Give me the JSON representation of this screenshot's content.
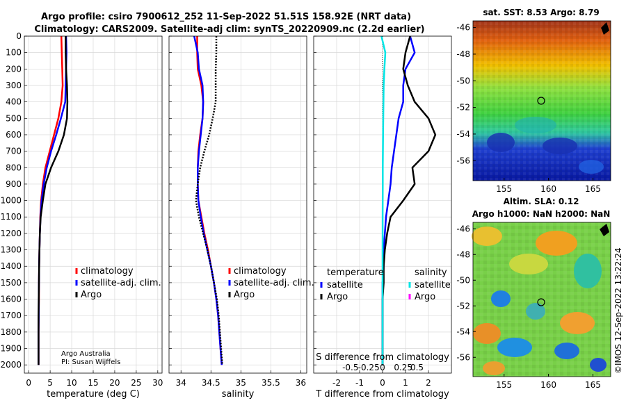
{
  "header": {
    "title_line1": "Argo profile: csiro 7900612_252 11-Sep-2022 51.51S 158.92E (NRT data)",
    "title_line2": "Climatology: CARS2009. Satellite-adj clim: synTS_20220909.nc (2.2d earlier)"
  },
  "credits": {
    "line1": "Argo Australia",
    "line2": "PI: Susan Wijffels"
  },
  "watermark": "©IMOS 12-Sep-2022 13:22:24",
  "colors": {
    "climatology": "#ff0000",
    "satellite": "#0000ff",
    "argo": "#000000",
    "cyan": "#00e5e5",
    "magenta": "#ff00ff"
  },
  "chart_data": [
    {
      "type": "line",
      "id": "temperature",
      "xlabel": "temperature (deg C)",
      "xlim": [
        -1,
        31
      ],
      "xticks": [
        0,
        5,
        10,
        15,
        20,
        25,
        30
      ],
      "ylim": [
        0,
        2050
      ],
      "yticks": [
        0,
        100,
        200,
        300,
        400,
        500,
        600,
        700,
        800,
        900,
        1000,
        1100,
        1200,
        1300,
        1400,
        1500,
        1600,
        1700,
        1800,
        1900,
        2000
      ],
      "grid": true,
      "legend": [
        "climatology",
        "satellite-adj. clim.",
        "Argo"
      ],
      "series": [
        {
          "name": "climatology",
          "color": "#ff0000",
          "x": [
            7.6,
            7.7,
            7.8,
            7.9,
            7.6,
            6.9,
            5.9,
            4.9,
            3.9,
            3.3,
            2.9,
            2.7,
            2.6,
            2.5,
            2.45,
            2.4,
            2.4,
            2.35,
            2.3,
            2.3,
            2.3
          ],
          "y": [
            0,
            100,
            200,
            300,
            400,
            500,
            600,
            700,
            800,
            900,
            1000,
            1100,
            1200,
            1300,
            1400,
            1500,
            1600,
            1700,
            1800,
            1900,
            2000
          ]
        },
        {
          "name": "satellite-adj. clim.",
          "color": "#0000ff",
          "x": [
            8.7,
            8.8,
            8.7,
            8.6,
            8.5,
            7.5,
            6.4,
            5.2,
            4.2,
            3.5,
            3.0,
            2.75,
            2.6,
            2.5,
            2.45,
            2.4,
            2.35,
            2.35,
            2.3,
            2.3,
            2.3
          ],
          "y": [
            0,
            100,
            200,
            300,
            400,
            500,
            600,
            700,
            800,
            900,
            1000,
            1100,
            1200,
            1300,
            1400,
            1500,
            1600,
            1700,
            1800,
            1900,
            2000
          ]
        },
        {
          "name": "Argo",
          "color": "#000000",
          "x": [
            8.6,
            8.6,
            8.7,
            8.9,
            9.0,
            8.9,
            8.2,
            6.9,
            5.2,
            3.9,
            3.3,
            2.8,
            2.6,
            2.5,
            2.45,
            2.4,
            2.35,
            2.3,
            2.3,
            2.3,
            2.3
          ],
          "y": [
            0,
            100,
            200,
            300,
            400,
            500,
            600,
            700,
            800,
            900,
            1000,
            1100,
            1200,
            1300,
            1400,
            1500,
            1600,
            1700,
            1800,
            1900,
            2000
          ]
        }
      ]
    },
    {
      "type": "line",
      "id": "salinity",
      "xlabel": "salinity",
      "xlim": [
        33.8,
        36.1
      ],
      "xticks": [
        34,
        34.5,
        35,
        35.5,
        36
      ],
      "ylim": [
        0,
        2050
      ],
      "grid": true,
      "legend": [
        "climatology",
        "satellite-adj. clim.",
        "Argo"
      ],
      "series": [
        {
          "name": "climatology",
          "color": "#ff0000",
          "x": [
            34.27,
            34.27,
            34.28,
            34.34,
            34.37,
            34.36,
            34.32,
            34.29,
            34.28,
            34.28,
            34.29,
            34.34,
            34.39,
            34.45,
            34.5,
            34.55,
            34.59,
            34.62,
            34.64,
            34.66,
            34.68
          ],
          "y": [
            0,
            100,
            200,
            300,
            400,
            500,
            600,
            700,
            800,
            900,
            1000,
            1100,
            1200,
            1300,
            1400,
            1500,
            1600,
            1700,
            1800,
            1900,
            2000
          ]
        },
        {
          "name": "satellite-adj. clim.",
          "color": "#0000ff",
          "x": [
            34.22,
            34.28,
            34.3,
            34.36,
            34.37,
            34.36,
            34.33,
            34.3,
            34.28,
            34.28,
            34.29,
            34.33,
            34.38,
            34.44,
            34.5,
            34.55,
            34.59,
            34.62,
            34.64,
            34.66,
            34.68
          ],
          "y": [
            0,
            100,
            200,
            300,
            400,
            500,
            600,
            700,
            800,
            900,
            1000,
            1100,
            1200,
            1300,
            1400,
            1500,
            1600,
            1700,
            1800,
            1900,
            2000
          ]
        },
        {
          "name": "Argo",
          "color": "#000000",
          "x": [
            34.59,
            34.59,
            34.58,
            34.58,
            34.58,
            34.53,
            34.47,
            34.39,
            34.32,
            34.28,
            34.25,
            34.3,
            34.37,
            34.44,
            34.5,
            34.55,
            34.6,
            34.63,
            34.65,
            34.67,
            34.69
          ],
          "y": [
            0,
            100,
            200,
            300,
            400,
            500,
            600,
            700,
            800,
            900,
            1000,
            1100,
            1200,
            1300,
            1400,
            1500,
            1600,
            1700,
            1800,
            1900,
            2000
          ]
        }
      ]
    },
    {
      "type": "line",
      "id": "difference",
      "xlabel": "T difference from climatology",
      "xlabel_top": "S difference from climatology",
      "xlim": [
        -3,
        3
      ],
      "xticks": [
        -2,
        -1,
        0,
        1,
        2
      ],
      "xticks_top": [
        "-0.5",
        "-0.25",
        "0",
        "0.25",
        "0.5"
      ],
      "ylim": [
        0,
        2050
      ],
      "grid": true,
      "legend_left_title": "temperature",
      "legend_right_title": "salinity",
      "legend_left": [
        "satellite",
        "Argo"
      ],
      "legend_right": [
        "satellite",
        "Argo"
      ],
      "series": [
        {
          "name": "temperature satellite",
          "color": "#0000ff",
          "x": [
            1.2,
            1.4,
            1.0,
            0.9,
            0.9,
            0.7,
            0.6,
            0.5,
            0.4,
            0.35,
            0.25,
            0.15,
            0.1,
            0.05,
            0.05,
            0.0,
            0.0,
            0.0,
            0.0,
            0.0,
            0.0
          ],
          "y": [
            0,
            100,
            200,
            300,
            400,
            500,
            600,
            700,
            800,
            900,
            1000,
            1100,
            1200,
            1300,
            1400,
            1500,
            1600,
            1700,
            1800,
            1900,
            2000
          ]
        },
        {
          "name": "temperature Argo",
          "color": "#000000",
          "x": [
            1.2,
            1.0,
            0.9,
            1.1,
            1.4,
            2.0,
            2.3,
            2.0,
            1.3,
            1.4,
            0.9,
            0.35,
            0.2,
            0.1,
            0.05,
            0.05,
            0.0,
            0.0,
            0.0,
            0.0,
            0.0
          ],
          "y": [
            0,
            100,
            200,
            300,
            400,
            500,
            600,
            700,
            800,
            900,
            1000,
            1100,
            1200,
            1300,
            1400,
            1500,
            1600,
            1700,
            1800,
            1900,
            2000
          ]
        },
        {
          "name": "salinity satellite",
          "color": "#00e5e5",
          "x": [
            -0.05,
            0.12,
            0.08,
            0.05,
            0.04,
            0.03,
            0.02,
            0.015,
            0.01,
            0.008,
            0.005,
            0.003,
            0.002,
            0.001,
            0.0,
            0.0,
            0.0,
            0.0,
            0.0,
            0.0,
            0.0
          ],
          "y": [
            0,
            100,
            200,
            300,
            400,
            500,
            600,
            700,
            800,
            900,
            1000,
            1100,
            1200,
            1300,
            1400,
            1500,
            1600,
            1700,
            1800,
            1900,
            2000
          ]
        }
      ]
    },
    {
      "type": "heatmap",
      "id": "sst-map",
      "title": "sat. SST: 8.53 Argo: 8.79",
      "xticks": [
        155,
        160,
        165
      ],
      "yticks": [
        -46,
        -48,
        -50,
        -52,
        -54,
        -56
      ],
      "xlim": [
        151.5,
        167
      ],
      "ylim": [
        -57.5,
        -45.5
      ],
      "marker": {
        "lon": 158.92,
        "lat": -51.51
      }
    },
    {
      "type": "heatmap",
      "id": "sla-map",
      "title_line1": "Altim. SLA: 0.12",
      "title_line2": "Argo h1000: NaN h2000: NaN",
      "xticks": [
        155,
        160,
        165
      ],
      "yticks": [
        -46,
        -48,
        -50,
        -52,
        -54,
        -56
      ],
      "xlim": [
        151.5,
        167
      ],
      "ylim": [
        -57.5,
        -45.5
      ],
      "marker": {
        "lon": 158.92,
        "lat": -51.51
      }
    }
  ]
}
